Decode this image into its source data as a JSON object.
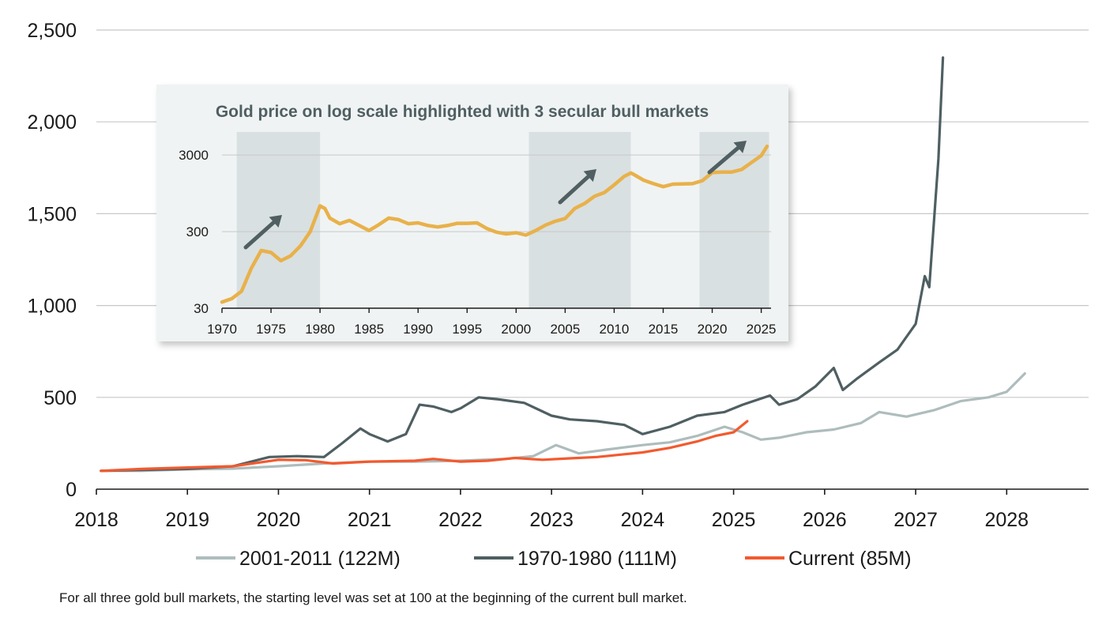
{
  "chart_data": [
    {
      "type": "line",
      "title": "",
      "xlabel": "",
      "ylabel": "",
      "x_ticks": [
        "2018",
        "2019",
        "2020",
        "2021",
        "2022",
        "2023",
        "2024",
        "2025",
        "2026",
        "2027",
        "2028"
      ],
      "xlim": [
        2018,
        2028.9
      ],
      "y_ticks": [
        "0",
        "500",
        "1,000",
        "1,500",
        "2,000",
        "2,500"
      ],
      "ylim": [
        0,
        2500
      ],
      "grid": "horizontal",
      "legend": "bottom",
      "series": [
        {
          "name": "2001-2011 (122M)",
          "color": "#aebcbc",
          "x": [
            2018.05,
            2018.5,
            2019.0,
            2019.5,
            2020.0,
            2020.5,
            2021.0,
            2021.5,
            2022.0,
            2022.5,
            2022.8,
            2023.05,
            2023.3,
            2023.6,
            2024.0,
            2024.3,
            2024.6,
            2024.9,
            2025.1,
            2025.3,
            2025.5,
            2025.8,
            2026.1,
            2026.4,
            2026.6,
            2026.9,
            2027.2,
            2027.5,
            2027.8,
            2028.0,
            2028.2
          ],
          "values": [
            100,
            100,
            108,
            112,
            125,
            140,
            150,
            150,
            155,
            165,
            180,
            240,
            195,
            215,
            240,
            255,
            290,
            340,
            310,
            270,
            280,
            310,
            325,
            360,
            420,
            395,
            430,
            480,
            500,
            530,
            630
          ]
        },
        {
          "name": "1970-1980 (111M)",
          "color": "#4f5f62",
          "x": [
            2018.05,
            2018.5,
            2019.0,
            2019.5,
            2019.9,
            2020.2,
            2020.5,
            2020.7,
            2020.9,
            2021.0,
            2021.2,
            2021.4,
            2021.55,
            2021.7,
            2021.9,
            2022.0,
            2022.2,
            2022.4,
            2022.7,
            2023.0,
            2023.2,
            2023.5,
            2023.8,
            2024.0,
            2024.3,
            2024.6,
            2024.9,
            2025.1,
            2025.4,
            2025.5,
            2025.7,
            2025.9,
            2026.1,
            2026.2,
            2026.35,
            2026.6,
            2026.8,
            2027.0,
            2027.1,
            2027.15,
            2027.25,
            2027.3
          ],
          "values": [
            100,
            105,
            110,
            125,
            175,
            180,
            175,
            250,
            330,
            300,
            260,
            300,
            460,
            450,
            420,
            440,
            500,
            490,
            470,
            400,
            380,
            370,
            350,
            300,
            340,
            400,
            420,
            460,
            510,
            460,
            490,
            560,
            660,
            540,
            600,
            690,
            760,
            900,
            1160,
            1100,
            1800,
            2350
          ]
        },
        {
          "name": "Current (85M)",
          "color": "#f25a2f",
          "x": [
            2018.05,
            2018.5,
            2019.0,
            2019.5,
            2020.0,
            2020.3,
            2020.6,
            2021.0,
            2021.5,
            2021.7,
            2022.0,
            2022.3,
            2022.6,
            2022.9,
            2023.2,
            2023.5,
            2023.8,
            2024.0,
            2024.3,
            2024.6,
            2024.8,
            2025.0,
            2025.15
          ],
          "values": [
            100,
            110,
            118,
            125,
            160,
            158,
            140,
            150,
            155,
            165,
            150,
            155,
            170,
            160,
            168,
            175,
            190,
            200,
            225,
            260,
            290,
            310,
            370
          ]
        }
      ]
    },
    {
      "type": "line",
      "title": "Gold price on log scale highlighted with 3 secular bull markets",
      "xlabel": "",
      "ylabel": "",
      "yscale": "log",
      "x_ticks": [
        "1970",
        "1975",
        "1980",
        "1985",
        "1990",
        "1995",
        "2000",
        "2005",
        "2010",
        "2015",
        "2020",
        "2025"
      ],
      "xlim": [
        1970,
        2026
      ],
      "y_ticks": [
        "30",
        "300",
        "3000"
      ],
      "ylim": [
        30,
        6000
      ],
      "highlighted_periods": [
        [
          1971.5,
          1980.0
        ],
        [
          2001.3,
          2011.7
        ],
        [
          2018.7,
          2025.8
        ]
      ],
      "series": [
        {
          "name": "",
          "color": "#e8b14a",
          "x": [
            1970,
            1971,
            1972,
            1973,
            1974,
            1975,
            1976,
            1977,
            1978,
            1979,
            1980.0,
            1980.5,
            1981,
            1982,
            1983,
            1984,
            1985,
            1986,
            1987,
            1988,
            1989,
            1990,
            1991,
            1992,
            1993,
            1994,
            1995,
            1996,
            1997,
            1998,
            1999,
            2000,
            2001,
            2002,
            2003,
            2004,
            2005,
            2006,
            2007,
            2008,
            2009,
            2010,
            2011,
            2011.7,
            2012,
            2013,
            2014,
            2015,
            2016,
            2017,
            2018,
            2019,
            2020,
            2021,
            2022,
            2023,
            2024,
            2025,
            2025.6
          ],
          "values": [
            36,
            40,
            50,
            100,
            170,
            160,
            125,
            145,
            195,
            300,
            650,
            600,
            450,
            380,
            420,
            360,
            310,
            370,
            450,
            430,
            380,
            390,
            360,
            345,
            360,
            385,
            385,
            390,
            330,
            295,
            280,
            290,
            270,
            310,
            365,
            410,
            445,
            605,
            700,
            870,
            970,
            1220,
            1570,
            1750,
            1670,
            1410,
            1270,
            1160,
            1250,
            1260,
            1270,
            1390,
            1770,
            1800,
            1800,
            1940,
            2390,
            2950,
            3900
          ]
        }
      ]
    }
  ],
  "legend": {
    "items": [
      {
        "label": "2001-2011 (122M)",
        "color": "#aebcbc"
      },
      {
        "label": "1970-1980 (111M)",
        "color": "#4f5f62"
      },
      {
        "label": "Current (85M)",
        "color": "#f25a2f"
      }
    ]
  },
  "inset": {
    "title": "Gold price on log scale highlighted with 3 secular bull markets"
  },
  "footnote": "For all three gold bull markets, the starting level was set at 100 at the beginning of the current bull market.",
  "colors": {
    "grid": "#c8c8c8",
    "axis": "#1a1a1a",
    "inset_background": "#f0f3f3",
    "highlight_band": "#d9e0e1",
    "arrow": "#4f5f62"
  }
}
